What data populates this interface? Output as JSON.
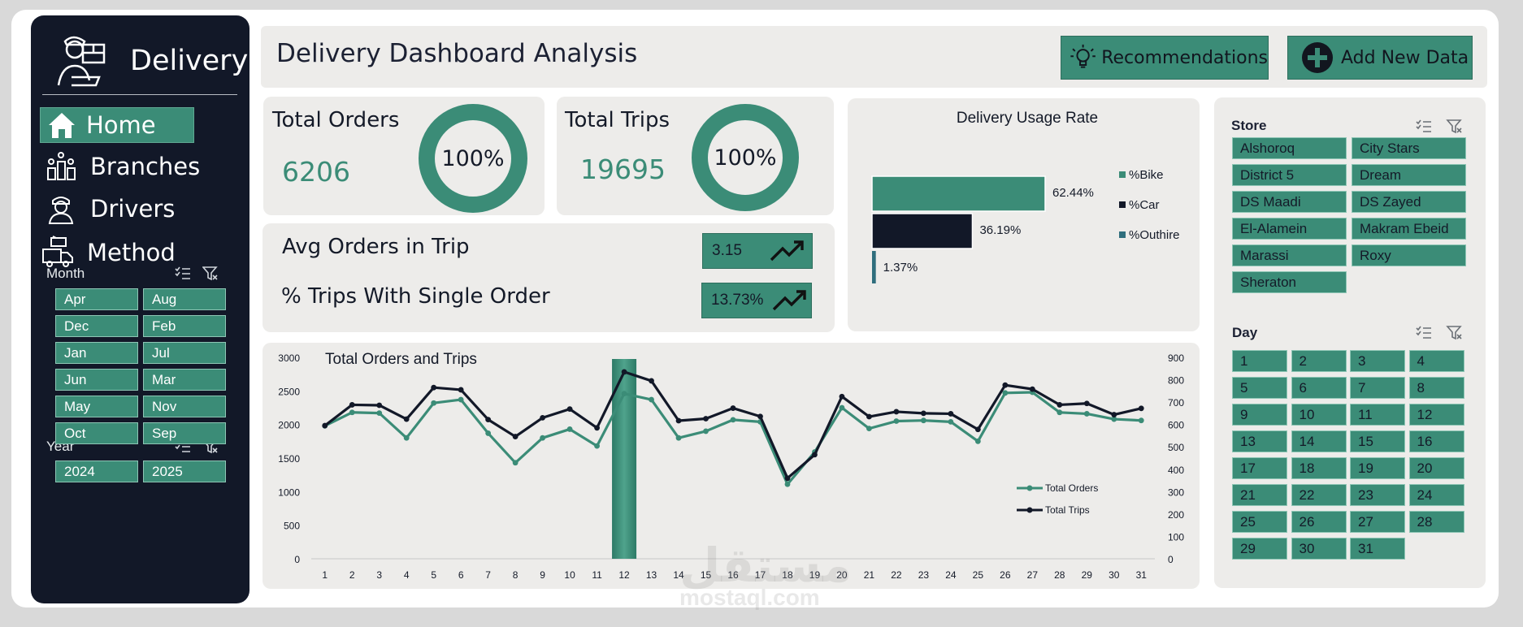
{
  "sidebar": {
    "logo_text": "Delivery",
    "nav": [
      {
        "label": "Home",
        "icon": "home-icon",
        "active": true
      },
      {
        "label": "Branches",
        "icon": "branches-icon",
        "active": false
      },
      {
        "label": "Drivers",
        "icon": "driver-icon",
        "active": false
      },
      {
        "label": "Method",
        "icon": "delivery-truck-icon",
        "active": false
      }
    ],
    "month_slicer": {
      "title": "Month",
      "items": [
        "Apr",
        "Aug",
        "Dec",
        "Feb",
        "Jan",
        "Jul",
        "Jun",
        "Mar",
        "May",
        "Nov",
        "Oct",
        "Sep"
      ]
    },
    "year_slicer": {
      "title": "Year",
      "items": [
        "2024",
        "2025"
      ]
    }
  },
  "header": {
    "title": "Delivery Dashboard Analysis",
    "recommendations_label": "Recommendations",
    "add_data_label": "Add New Data"
  },
  "kpis": {
    "total_orders": {
      "label": "Total Orders",
      "value": "6206",
      "pct": "100%"
    },
    "total_trips": {
      "label": "Total Trips",
      "value": "19695",
      "pct": "100%"
    },
    "avg_orders_label": "Avg Orders in Trip",
    "avg_orders_value": "3.15",
    "single_order_label": "% Trips With Single Order",
    "single_order_value": "13.73%"
  },
  "usage_chart": {
    "title": "Delivery Usage Rate",
    "chart_data": {
      "type": "bar",
      "orientation": "horizontal",
      "categories": [
        "%Bike",
        "%Car",
        "%Outhire"
      ],
      "values": [
        62.44,
        36.19,
        1.37
      ],
      "value_labels": [
        "62.44%",
        "36.19%",
        "1.37%"
      ],
      "colors": [
        "#3b8c77",
        "#121828",
        "#2f6e7d"
      ],
      "legend": "right"
    }
  },
  "line_chart": {
    "title": "Total Orders and Trips",
    "chart_data": {
      "type": "line",
      "x": [
        1,
        2,
        3,
        4,
        5,
        6,
        7,
        8,
        9,
        10,
        11,
        12,
        13,
        14,
        15,
        16,
        17,
        18,
        19,
        20,
        21,
        22,
        23,
        24,
        25,
        26,
        27,
        28,
        29,
        30,
        31
      ],
      "y_left_ticks": [
        "3000",
        "2500",
        "2000",
        "1500",
        "1000",
        "500",
        "0"
      ],
      "y_right_ticks": [
        "900",
        "800",
        "700",
        "600",
        "500",
        "400",
        "300",
        "200",
        "100",
        "0"
      ],
      "ylim_left": [
        0,
        3000
      ],
      "ylim_right": [
        0,
        900
      ],
      "highlight_x": 12,
      "legend": "bottom-right",
      "series": [
        {
          "name": "Total Orders",
          "axis": "left",
          "color": "#3b8c77",
          "values": [
            1980,
            2180,
            2170,
            1800,
            2320,
            2370,
            1870,
            1430,
            1800,
            1930,
            1680,
            2460,
            2370,
            1800,
            1900,
            2070,
            2040,
            1110,
            1590,
            2250,
            1940,
            2050,
            2060,
            2040,
            1750,
            2470,
            2480,
            2180,
            2160,
            2080,
            2060
          ]
        },
        {
          "name": "Total Trips",
          "axis": "right",
          "color": "#121828",
          "values": [
            595,
            688,
            686,
            624,
            765,
            755,
            622,
            546,
            630,
            669,
            585,
            835,
            795,
            617,
            626,
            673,
            636,
            360,
            465,
            725,
            635,
            657,
            650,
            648,
            578,
            776,
            758,
            688,
            694,
            644,
            672
          ]
        }
      ]
    }
  },
  "store_slicer": {
    "title": "Store",
    "items": [
      "Alshoroq",
      "City Stars",
      "District 5",
      "Dream",
      "DS Maadi",
      "DS Zayed",
      "El-Alamein",
      "Makram Ebeid",
      "Marassi",
      "Roxy",
      "Sheraton"
    ]
  },
  "day_slicer": {
    "title": "Day",
    "items": [
      "1",
      "2",
      "3",
      "4",
      "5",
      "6",
      "7",
      "8",
      "9",
      "10",
      "11",
      "12",
      "13",
      "14",
      "15",
      "16",
      "17",
      "18",
      "19",
      "20",
      "21",
      "22",
      "23",
      "24",
      "25",
      "26",
      "27",
      "28",
      "29",
      "30",
      "31"
    ]
  },
  "watermark": {
    "arabic": "مستقل",
    "latin": "mostaql.com"
  }
}
